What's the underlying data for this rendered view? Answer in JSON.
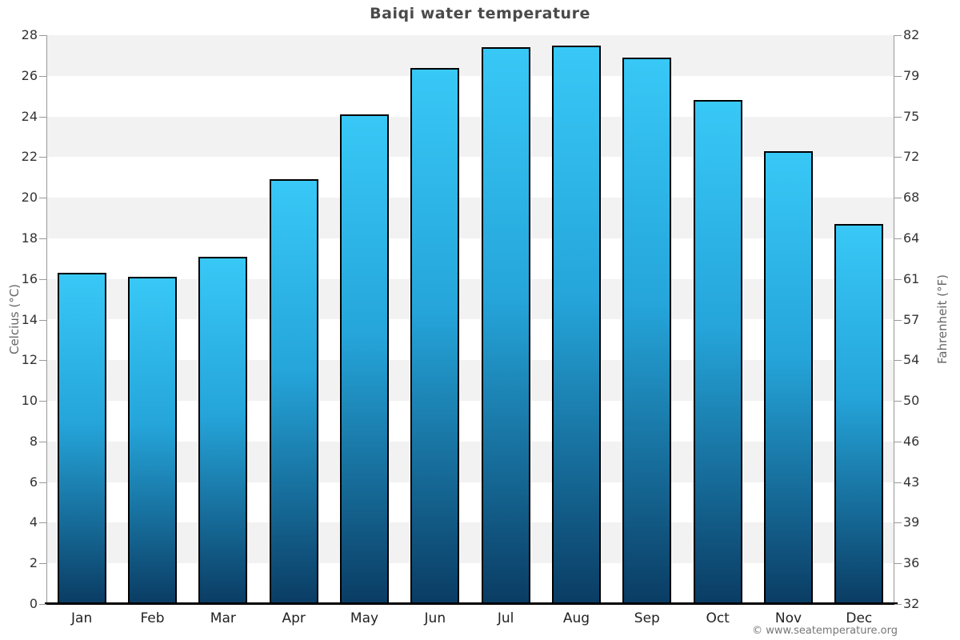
{
  "page": {
    "title": "Baiqi water temperature",
    "copyright": "© www.seatemperature.org"
  },
  "chart_data": {
    "type": "bar",
    "title": "Baiqi water temperature",
    "categories": [
      "Jan",
      "Feb",
      "Mar",
      "Apr",
      "May",
      "Jun",
      "Jul",
      "Aug",
      "Sep",
      "Oct",
      "Nov",
      "Dec"
    ],
    "series": [
      {
        "name": "Water temperature",
        "unit": "°C",
        "values": [
          16.3,
          16.1,
          17.1,
          20.9,
          24.1,
          26.4,
          27.4,
          27.5,
          26.9,
          24.8,
          22.3,
          18.7
        ]
      }
    ],
    "y_axis_left": {
      "label": "Celcius (°C)",
      "min": 0,
      "max": 28,
      "ticks": [
        0,
        2,
        4,
        6,
        8,
        10,
        12,
        14,
        16,
        18,
        20,
        22,
        24,
        26,
        28
      ]
    },
    "y_axis_right": {
      "label": "Fahrenheit (°F)",
      "ticks": [
        32,
        36,
        39,
        43,
        46,
        50,
        54,
        57,
        61,
        64,
        68,
        72,
        75,
        79,
        82
      ]
    },
    "x_axis": {
      "label": ""
    },
    "legend": "none",
    "grid": "horizontal-stripes-every-2C",
    "colors": {
      "bar_gradient_top": "#38c8f6",
      "bar_gradient_mid": "#25a5da",
      "bar_gradient_bottom": "#0a3c63",
      "bar_border": "#000000",
      "stripe_dark": "#f2f2f2",
      "stripe_light": "#ffffff",
      "axis_line": "#999999",
      "baseline": "#000000",
      "title": "#4a4a4a",
      "tick_label": "#333333",
      "axis_title": "#666666",
      "copyright": "#777777"
    }
  }
}
